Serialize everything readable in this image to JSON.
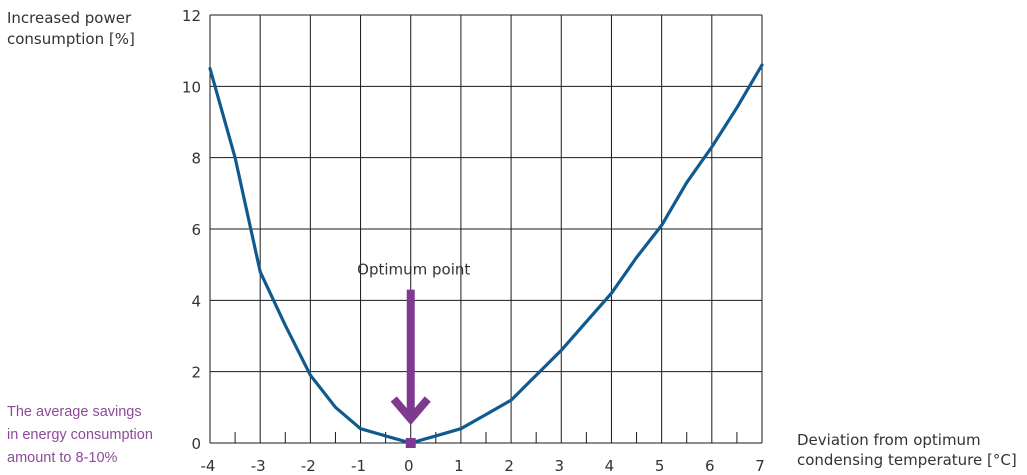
{
  "colors": {
    "curve": "#0f5b8f",
    "arrow": "#7e3a8e",
    "note": "#8e4a9a",
    "grid": "#1a1a1a",
    "text": "#333333"
  },
  "chart_data": {
    "type": "line",
    "title": "",
    "ylabel_lines": [
      "Increased power",
      "consumption [%]"
    ],
    "xlabel_lines": [
      "Deviation from optimum",
      "condensing temperature [°C]"
    ],
    "xlim": [
      -4,
      7
    ],
    "ylim": [
      0,
      12
    ],
    "x_ticks": [
      "-4",
      "-3",
      "-2",
      "-1",
      "0",
      "1",
      "2",
      "3",
      "4",
      "5",
      "6",
      "7"
    ],
    "y_ticks": [
      "0",
      "2",
      "4",
      "6",
      "8",
      "10",
      "12"
    ],
    "grid": true,
    "minor_ticks": "x-axis every 0.5",
    "series": [
      {
        "x": [
          -4,
          -3.5,
          -3,
          -2.5,
          -2,
          -1.5,
          -1,
          -0.5,
          0,
          0.5,
          1,
          1.5,
          2,
          2.5,
          3,
          3.5,
          4,
          4.5,
          5,
          5.5,
          6,
          6.5,
          7
        ],
        "y": [
          10.5,
          8.0,
          4.8,
          3.3,
          1.9,
          1.0,
          0.4,
          0.2,
          0.0,
          0.2,
          0.4,
          0.8,
          1.2,
          1.9,
          2.6,
          3.4,
          4.2,
          5.2,
          6.1,
          7.3,
          8.3,
          9.4,
          10.6
        ]
      }
    ],
    "annotations": [
      {
        "text": "Optimum point",
        "x": 0,
        "arrow_from_y": 4.3,
        "arrow_to_y": 0
      }
    ]
  },
  "note_lines": [
    "The average savings",
    "in energy consumption",
    "amount to 8-10%"
  ]
}
